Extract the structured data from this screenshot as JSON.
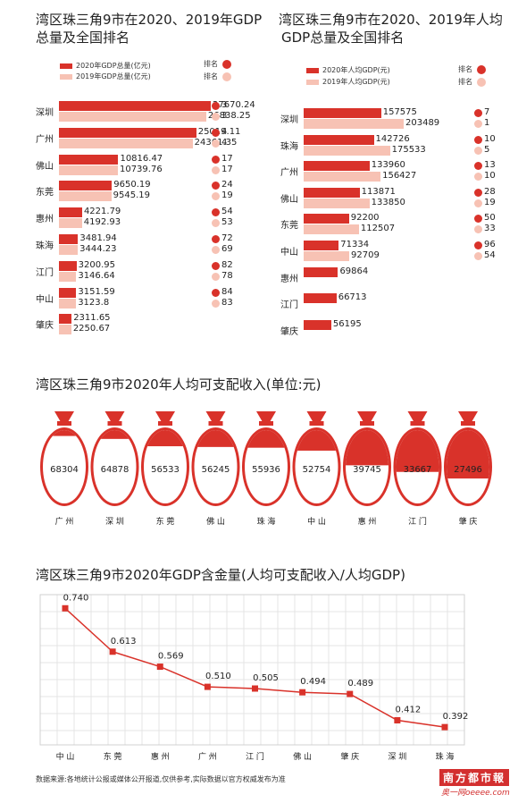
{
  "colors": {
    "primary": "#d9322a",
    "secondary": "#f7c2b4",
    "line": "#d9322a"
  },
  "gdp_total": {
    "title_line1": "湾区珠三角9市在2020、2019年GDP",
    "title_line2": "总量及全国排名",
    "legend_2020": "2020年GDP总量(亿元)",
    "legend_2019": "2019年GDP总量(亿元)",
    "rank_label": "排名",
    "rows": [
      {
        "city": "深圳",
        "v2020": "27670.24",
        "v2019": "26838.25",
        "r2020": "3",
        "r2019": "3"
      },
      {
        "city": "广州",
        "v2020": "25019.11",
        "v2019": "24361.35",
        "r2020": "4",
        "r2019": "4"
      },
      {
        "city": "佛山",
        "v2020": "10816.47",
        "v2019": "10739.76",
        "r2020": "17",
        "r2019": "17"
      },
      {
        "city": "东莞",
        "v2020": "9650.19",
        "v2019": "9545.19",
        "r2020": "24",
        "r2019": "19"
      },
      {
        "city": "惠州",
        "v2020": "4221.79",
        "v2019": "4192.93",
        "r2020": "54",
        "r2019": "53"
      },
      {
        "city": "珠海",
        "v2020": "3481.94",
        "v2019": "3444.23",
        "r2020": "72",
        "r2019": "69"
      },
      {
        "city": "江门",
        "v2020": "3200.95",
        "v2019": "3146.64",
        "r2020": "82",
        "r2019": "78"
      },
      {
        "city": "中山",
        "v2020": "3151.59",
        "v2019": "3123.8",
        "r2020": "84",
        "r2019": "83"
      },
      {
        "city": "肇庆",
        "v2020": "2311.65",
        "v2019": "2250.67",
        "r2020": "",
        "r2019": ""
      }
    ]
  },
  "gdp_per_capita": {
    "title_line1": "湾区珠三角9市在2020、2019年人均",
    "title_line2": "GDP总量及全国排名",
    "legend_2020": "2020年人均GDP(元)",
    "legend_2019": "2019年人均GDP(元)",
    "rank_label": "排名",
    "rows": [
      {
        "city": "深圳",
        "v2020": "157575",
        "v2019": "203489",
        "r2020": "7",
        "r2019": "1"
      },
      {
        "city": "珠海",
        "v2020": "142726",
        "v2019": "175533",
        "r2020": "10",
        "r2019": "5"
      },
      {
        "city": "广州",
        "v2020": "133960",
        "v2019": "156427",
        "r2020": "13",
        "r2019": "10"
      },
      {
        "city": "佛山",
        "v2020": "113871",
        "v2019": "133850",
        "r2020": "28",
        "r2019": "19"
      },
      {
        "city": "东莞",
        "v2020": "92200",
        "v2019": "112507",
        "r2020": "50",
        "r2019": "33"
      },
      {
        "city": "中山",
        "v2020": "71334",
        "v2019": "92709",
        "r2020": "96",
        "r2019": "54"
      },
      {
        "city": "惠州",
        "v2020": "69864",
        "v2019": "",
        "r2020": "",
        "r2019": ""
      },
      {
        "city": "江门",
        "v2020": "66713",
        "v2019": "",
        "r2020": "",
        "r2019": ""
      },
      {
        "city": "肇庆",
        "v2020": "56195",
        "v2019": "",
        "r2020": "",
        "r2019": ""
      }
    ]
  },
  "income": {
    "title": "湾区珠三角9市2020年人均可支配收入(单位:元)",
    "items": [
      {
        "city": "广 州",
        "value": "68304",
        "fill": 0.08
      },
      {
        "city": "深 圳",
        "value": "64878",
        "fill": 0.12
      },
      {
        "city": "东 莞",
        "value": "56533",
        "fill": 0.22
      },
      {
        "city": "佛 山",
        "value": "56245",
        "fill": 0.23
      },
      {
        "city": "珠 海",
        "value": "55936",
        "fill": 0.24
      },
      {
        "city": "中 山",
        "value": "52754",
        "fill": 0.28
      },
      {
        "city": "惠 州",
        "value": "39745",
        "fill": 0.48
      },
      {
        "city": "江 门",
        "value": "33667",
        "fill": 0.57
      },
      {
        "city": "肇 庆",
        "value": "27496",
        "fill": 0.66
      }
    ]
  },
  "chart_data": {
    "type": "line",
    "title": "湾区珠三角9市2020年GDP含金量(人均可支配收入/人均GDP)",
    "categories": [
      "中 山",
      "东 莞",
      "惠 州",
      "广 州",
      "江 门",
      "佛 山",
      "肇 庆",
      "深 圳",
      "珠 海"
    ],
    "values": [
      0.74,
      0.613,
      0.569,
      0.51,
      0.505,
      0.494,
      0.489,
      0.412,
      0.392
    ],
    "labels": [
      "0.740",
      "0.613",
      "0.569",
      "0.510",
      "0.505",
      "0.494",
      "0.489",
      "0.412",
      "0.392"
    ],
    "ylim": [
      0.34,
      0.78
    ],
    "grid": true
  },
  "footer": {
    "source": "数据来源:各地统计公报或媒体公开报道,仅供参考,实际数据以官方权威发布为准",
    "brand": "南方都市報",
    "watermark": "奥一网oeeee.com"
  }
}
